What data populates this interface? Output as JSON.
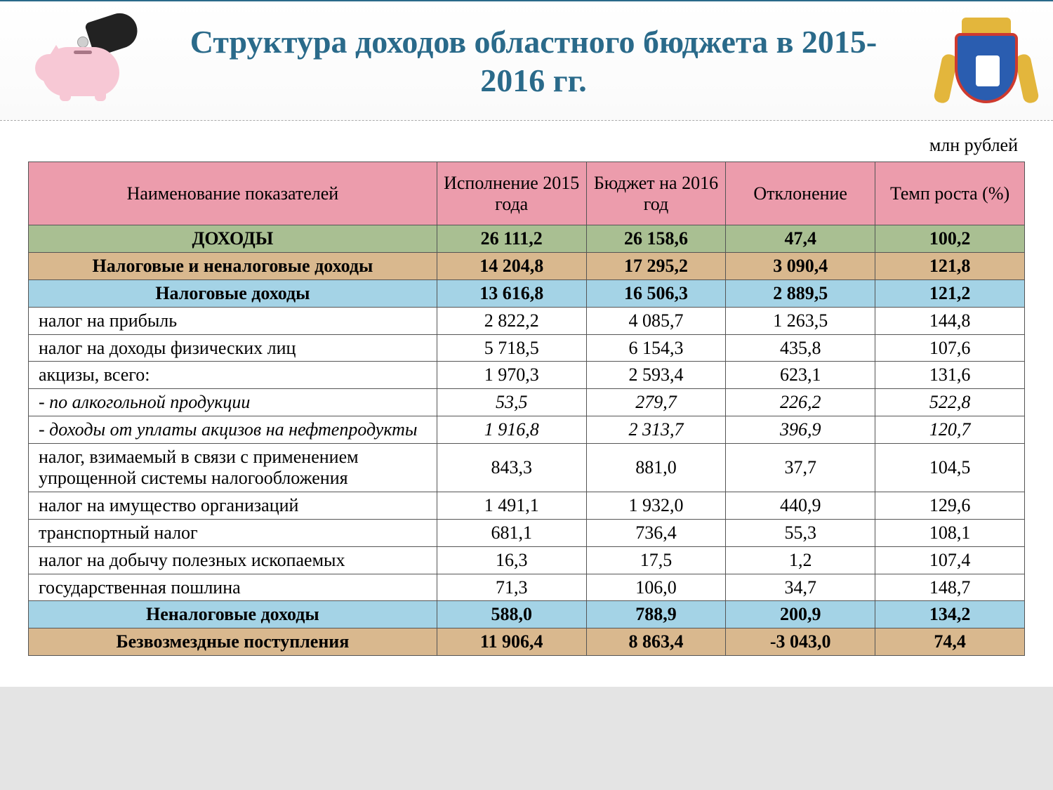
{
  "title": "Структура доходов областного бюджета в 2015-2016 гг.",
  "units_label": "млн рублей",
  "colors": {
    "title_color": "#2a6a8a",
    "header_bg": "#ec9cac",
    "green_bg": "#a9bf92",
    "tan_bg": "#d9b88e",
    "blue_bg": "#a4d3e6",
    "white_bg": "#ffffff",
    "border": "#555555",
    "footer_bg": "#e4e4e4"
  },
  "columns": [
    {
      "label": "Наименование показателей",
      "width": "41%"
    },
    {
      "label": "Исполнение 2015 года",
      "width": "15%"
    },
    {
      "label": "Бюджет на 2016 год",
      "width": "14%"
    },
    {
      "label": "Отклонение",
      "width": "15%"
    },
    {
      "label": "Темп роста (%)",
      "width": "15%"
    }
  ],
  "rows": [
    {
      "style": "green",
      "bold": true,
      "name": "ДОХОДЫ",
      "v2015": "26 111,2",
      "v2016": "26 158,6",
      "dev": "47,4",
      "rate": "100,2"
    },
    {
      "style": "tan",
      "bold": true,
      "name": "Налоговые и неналоговые доходы",
      "v2015": "14 204,8",
      "v2016": "17 295,2",
      "dev": "3 090,4",
      "rate": "121,8"
    },
    {
      "style": "blue",
      "bold": true,
      "name": "Налоговые  доходы",
      "v2015": "13 616,8",
      "v2016": "16 506,3",
      "dev": "2 889,5",
      "rate": "121,2"
    },
    {
      "style": "white",
      "name": "налог на прибыль",
      "v2015": "2 822,2",
      "v2016": "4 085,7",
      "dev": "1 263,5",
      "rate": "144,8"
    },
    {
      "style": "white",
      "name": "налог на доходы физических лиц",
      "v2015": "5 718,5",
      "v2016": "6 154,3",
      "dev": "435,8",
      "rate": "107,6"
    },
    {
      "style": "white",
      "name": "акцизы, всего:",
      "v2015": "1 970,3",
      "v2016": "2 593,4",
      "dev": "623,1",
      "rate": "131,6"
    },
    {
      "style": "white",
      "italic": true,
      "name": "- по алкогольной продукции",
      "v2015": "53,5",
      "v2016": "279,7",
      "dev": "226,2",
      "rate": "522,8"
    },
    {
      "style": "white",
      "italic": true,
      "name": "- доходы от уплаты акцизов на нефтепродукты",
      "v2015": "1 916,8",
      "v2016": "2 313,7",
      "dev": "396,9",
      "rate": "120,7"
    },
    {
      "style": "white",
      "name": "налог, взимаемый в связи с применением упрощенной системы налогообложения",
      "v2015": "843,3",
      "v2016": "881,0",
      "dev": "37,7",
      "rate": "104,5"
    },
    {
      "style": "white",
      "name": "налог на имущество организаций",
      "v2015": "1 491,1",
      "v2016": "1 932,0",
      "dev": "440,9",
      "rate": "129,6"
    },
    {
      "style": "white",
      "name": "транспортный налог",
      "v2015": "681,1",
      "v2016": "736,4",
      "dev": "55,3",
      "rate": "108,1"
    },
    {
      "style": "white",
      "name": "налог на добычу полезных ископаемых",
      "v2015": "16,3",
      "v2016": "17,5",
      "dev": "1,2",
      "rate": "107,4"
    },
    {
      "style": "white",
      "name": "государственная пошлина",
      "v2015": "71,3",
      "v2016": "106,0",
      "dev": "34,7",
      "rate": "148,7"
    },
    {
      "style": "blue",
      "bold": true,
      "name": "Неналоговые доходы",
      "v2015": "588,0",
      "v2016": "788,9",
      "dev": "200,9",
      "rate": "134,2"
    },
    {
      "style": "tan",
      "bold": true,
      "name": "Безвозмездные поступления",
      "v2015": "11 906,4",
      "v2016": "8 863,4",
      "dev": "-3 043,0",
      "rate": "74,4"
    }
  ]
}
